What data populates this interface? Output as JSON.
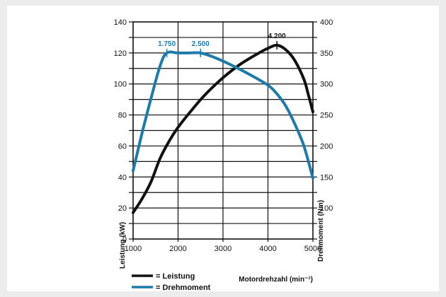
{
  "colors": {
    "background": "#ececec",
    "panel": "#ffffff",
    "grid": "#111111",
    "leistung": "#111111",
    "drehmoment": "#1f7aa8"
  },
  "chart_data": {
    "type": "line",
    "grid": true,
    "x_axis": {
      "label": "Motordrehzahl (min⁻¹)",
      "range": [
        1000,
        5000
      ],
      "ticks": [
        1000,
        2000,
        3000,
        4000,
        5000
      ],
      "tick_labels": [
        "1000",
        "2000",
        "3000",
        "4000",
        "5000"
      ]
    },
    "y_axis_left": {
      "label": "Leistung (kW)",
      "range": [
        0,
        140
      ],
      "ticks": [
        0,
        20,
        40,
        60,
        80,
        100,
        120,
        140
      ],
      "tick_labels": [
        "0",
        "20",
        "40",
        "60",
        "80",
        "100",
        "120",
        "140"
      ]
    },
    "y_axis_right": {
      "label": "Drehmoment (Nm)",
      "range": [
        50,
        400
      ],
      "ticks": [
        100,
        150,
        200,
        250,
        300,
        350,
        400
      ],
      "tick_labels": [
        "100",
        "150",
        "200",
        "250",
        "300",
        "350",
        "400"
      ]
    },
    "series": [
      {
        "name": "Leistung",
        "axis": "left",
        "color": "#111111",
        "points": [
          [
            1000,
            17
          ],
          [
            1200,
            26
          ],
          [
            1400,
            37
          ],
          [
            1600,
            52
          ],
          [
            1800,
            63
          ],
          [
            2000,
            72
          ],
          [
            2300,
            83
          ],
          [
            2600,
            93
          ],
          [
            3000,
            104
          ],
          [
            3400,
            113
          ],
          [
            3800,
            120
          ],
          [
            4000,
            123
          ],
          [
            4200,
            125
          ],
          [
            4400,
            122
          ],
          [
            4600,
            115
          ],
          [
            4800,
            103
          ],
          [
            4900,
            93
          ],
          [
            5000,
            82
          ]
        ]
      },
      {
        "name": "Drehmoment",
        "axis": "right",
        "color": "#1f7aa8",
        "points": [
          [
            1000,
            160
          ],
          [
            1200,
            221
          ],
          [
            1400,
            277
          ],
          [
            1600,
            329
          ],
          [
            1750,
            350
          ],
          [
            2000,
            350
          ],
          [
            2250,
            350
          ],
          [
            2500,
            350
          ],
          [
            2800,
            343
          ],
          [
            3200,
            330
          ],
          [
            3600,
            315
          ],
          [
            4000,
            298
          ],
          [
            4200,
            284
          ],
          [
            4400,
            264
          ],
          [
            4600,
            235
          ],
          [
            4800,
            200
          ],
          [
            5000,
            148
          ]
        ]
      }
    ],
    "annotations": [
      {
        "text": "4.200",
        "x": 4200,
        "series": "Leistung"
      },
      {
        "text": "1.750",
        "x": 1750,
        "series": "Drehmoment"
      },
      {
        "text": "2.500",
        "x": 2500,
        "series": "Drehmoment"
      }
    ],
    "legend": {
      "placement": "bottom-left",
      "entries": [
        {
          "label": "= Leistung",
          "color": "#111111"
        },
        {
          "label": "= Drehmoment",
          "color": "#1f7aa8"
        }
      ]
    }
  }
}
